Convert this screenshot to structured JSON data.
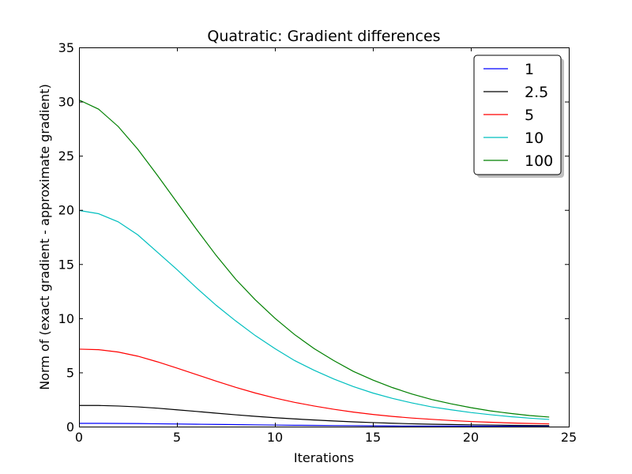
{
  "chart_data": {
    "type": "line",
    "title": "Quatratic: Gradient differences",
    "xlabel": "Iterations",
    "ylabel": "Norm of (exact gradient - approximate gradient)",
    "xlim": [
      0,
      25
    ],
    "ylim": [
      0,
      35
    ],
    "xticks": [
      0,
      5,
      10,
      15,
      20,
      25
    ],
    "yticks": [
      0,
      5,
      10,
      15,
      20,
      25,
      30,
      35
    ],
    "grid": false,
    "legend_position": "top-right",
    "x": [
      0,
      1,
      2,
      3,
      4,
      5,
      6,
      7,
      8,
      9,
      10,
      11,
      12,
      13,
      14,
      15,
      16,
      17,
      18,
      19,
      20,
      21,
      22,
      23,
      24
    ],
    "series": [
      {
        "name": "1",
        "color": "#0000ff",
        "values": [
          0.3,
          0.3,
          0.29,
          0.28,
          0.26,
          0.24,
          0.22,
          0.2,
          0.18,
          0.16,
          0.14,
          0.12,
          0.11,
          0.095,
          0.085,
          0.075,
          0.065,
          0.055,
          0.05,
          0.045,
          0.04,
          0.035,
          0.03,
          0.028,
          0.025
        ]
      },
      {
        "name": "2.5",
        "color": "#000000",
        "values": [
          1.95,
          1.95,
          1.9,
          1.82,
          1.7,
          1.55,
          1.4,
          1.24,
          1.09,
          0.95,
          0.82,
          0.71,
          0.61,
          0.52,
          0.44,
          0.37,
          0.31,
          0.26,
          0.22,
          0.19,
          0.16,
          0.14,
          0.12,
          0.1,
          0.09
        ]
      },
      {
        "name": "5",
        "color": "#ff0000",
        "values": [
          7.15,
          7.1,
          6.88,
          6.5,
          5.98,
          5.4,
          4.8,
          4.2,
          3.62,
          3.1,
          2.64,
          2.24,
          1.9,
          1.6,
          1.34,
          1.12,
          0.94,
          0.79,
          0.67,
          0.56,
          0.47,
          0.4,
          0.34,
          0.29,
          0.25
        ]
      },
      {
        "name": "10",
        "color": "#00bfbf",
        "values": [
          19.95,
          19.65,
          18.9,
          17.7,
          16.1,
          14.5,
          12.8,
          11.2,
          9.75,
          8.4,
          7.2,
          6.1,
          5.2,
          4.4,
          3.7,
          3.1,
          2.6,
          2.18,
          1.82,
          1.55,
          1.3,
          1.1,
          0.92,
          0.78,
          0.66
        ]
      },
      {
        "name": "100",
        "color": "#008000",
        "values": [
          30.15,
          29.3,
          27.7,
          25.6,
          23.2,
          20.7,
          18.2,
          15.8,
          13.6,
          11.7,
          10.0,
          8.5,
          7.2,
          6.1,
          5.1,
          4.3,
          3.6,
          3.0,
          2.5,
          2.1,
          1.75,
          1.45,
          1.22,
          1.02,
          0.88
        ]
      }
    ]
  }
}
